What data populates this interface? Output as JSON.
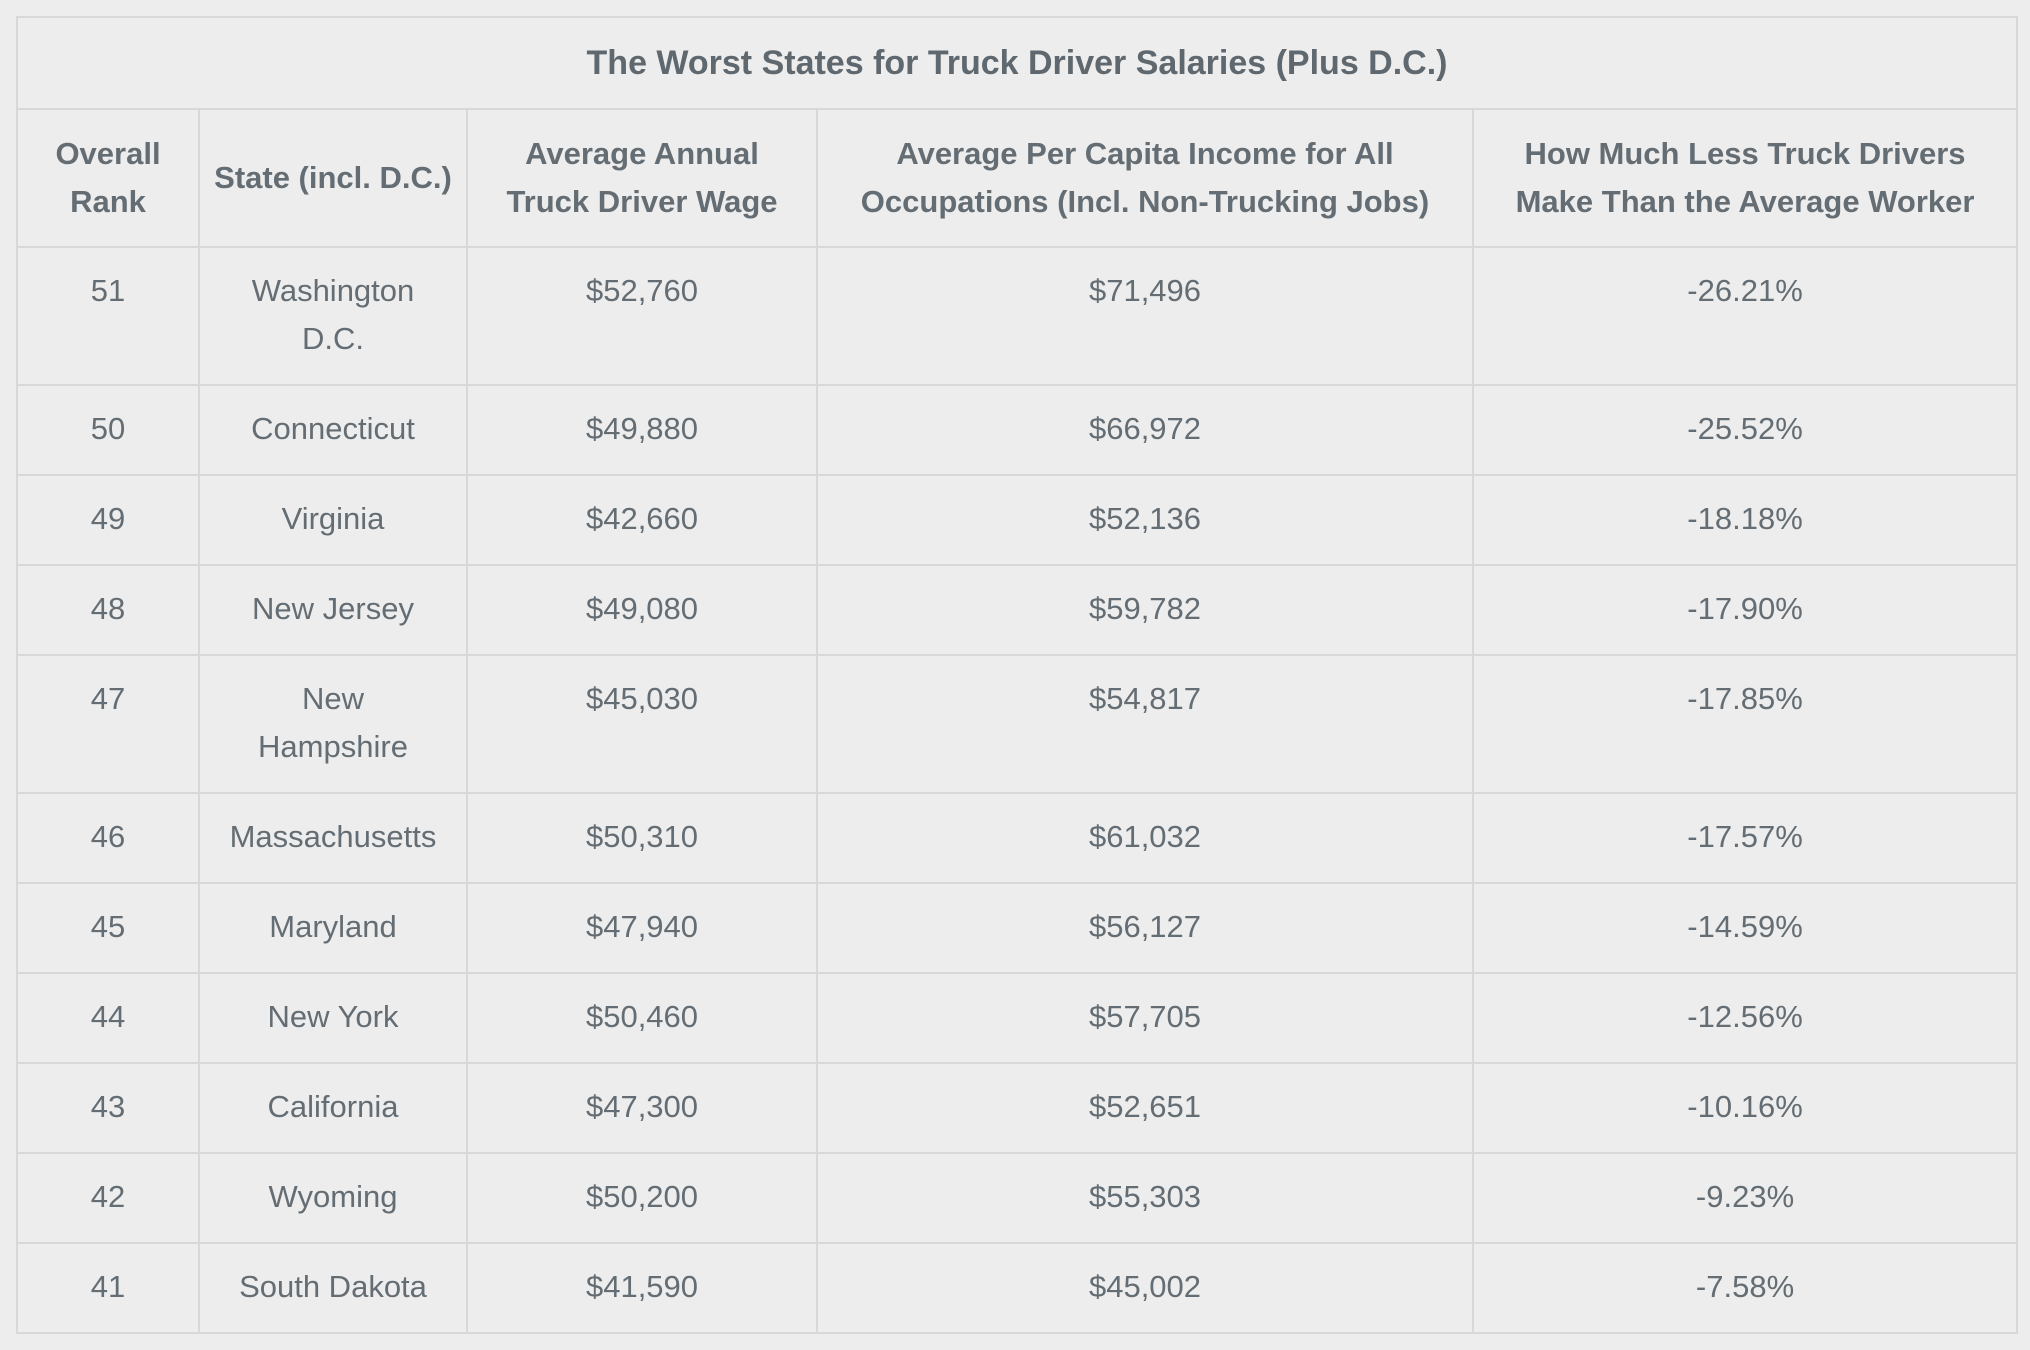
{
  "table": {
    "title": "The Worst States for Truck Driver Salaries (Plus D.C.)",
    "headers": [
      "Overall Rank",
      "State (incl. D.C.)",
      "Average Annual Truck Driver Wage",
      "Average Per Capita Income for All Occupations (Incl. Non-Trucking Jobs)",
      "How Much Less Truck Drivers Make Than the Average Worker"
    ],
    "rows": [
      {
        "rank": "51",
        "state": "Washington D.C.",
        "wage": "$52,760",
        "income": "$71,496",
        "diff": "-26.21%"
      },
      {
        "rank": "50",
        "state": "Connecticut",
        "wage": "$49,880",
        "income": "$66,972",
        "diff": "-25.52%"
      },
      {
        "rank": "49",
        "state": "Virginia",
        "wage": "$42,660",
        "income": "$52,136",
        "diff": "-18.18%"
      },
      {
        "rank": "48",
        "state": "New Jersey",
        "wage": "$49,080",
        "income": "$59,782",
        "diff": "-17.90%"
      },
      {
        "rank": "47",
        "state": "New Hampshire",
        "wage": "$45,030",
        "income": "$54,817",
        "diff": "-17.85%"
      },
      {
        "rank": "46",
        "state": "Massachusetts",
        "wage": "$50,310",
        "income": "$61,032",
        "diff": "-17.57%"
      },
      {
        "rank": "45",
        "state": "Maryland",
        "wage": "$47,940",
        "income": "$56,127",
        "diff": "-14.59%"
      },
      {
        "rank": "44",
        "state": "New York",
        "wage": "$50,460",
        "income": "$57,705",
        "diff": "-12.56%"
      },
      {
        "rank": "43",
        "state": "California",
        "wage": "$47,300",
        "income": "$52,651",
        "diff": "-10.16%"
      },
      {
        "rank": "42",
        "state": "Wyoming",
        "wage": "$50,200",
        "income": "$55,303",
        "diff": "-9.23%"
      },
      {
        "rank": "41",
        "state": "South Dakota",
        "wage": "$41,590",
        "income": "$45,002",
        "diff": "-7.58%"
      }
    ]
  }
}
